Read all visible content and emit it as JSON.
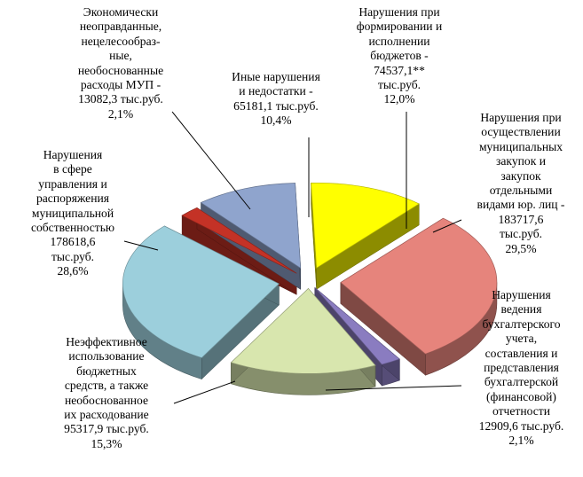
{
  "chart_data": {
    "type": "pie",
    "style": "3d-exploded",
    "legend": "none",
    "slices": [
      {
        "key": "budget",
        "label": "Нарушения при\nформировании и\nисполнении\nбюджетов -\n74537,1**\nтыс.руб.\n12,0%",
        "value": 74537.1,
        "unit": "тыс.руб.",
        "percent": 12.0,
        "color": "#ffff00"
      },
      {
        "key": "procurement",
        "label": "Нарушения при\nосуществлении\nмуниципальных\nзакупок и\nзакупок\nотдельными\nвидами юр. лиц -\n183717,6\nтыс.руб.\n29,5%",
        "value": 183717.6,
        "unit": "тыс.руб.",
        "percent": 29.5,
        "color": "#e6847c"
      },
      {
        "key": "accounting",
        "label": "Нарушения\nведения\nбухгалтерского\nучета,\nсоставления и\nпредставления\nбухгалтерской\n(финансовой)\nотчетности\n12909,6 тыс.руб.\n2,1%",
        "value": 12909.6,
        "unit": "тыс.руб.",
        "percent": 2.1,
        "color": "#8a7cc0"
      },
      {
        "key": "inefficient",
        "label": "Неэффективное\nиспользование\nбюджетных\nсредств, а также\nнеобоснованное\nих расходование\n95317,9 тыс.руб.\n15,3%",
        "value": 95317.9,
        "unit": "тыс.руб.",
        "percent": 15.3,
        "color": "#d8e6ae"
      },
      {
        "key": "property",
        "label": "Нарушения\nв сфере\nуправления и\nраспоряжения\nмуниципальной\nсобственностью\n178618,6\nтыс.руб.\n28,6%",
        "value": 178618.6,
        "unit": "тыс.руб.",
        "percent": 28.6,
        "color": "#9ccfdc"
      },
      {
        "key": "mup",
        "label": "Экономически\nнеоправданные,\nнецелесообраз-\nные,\nнеобоснованные\nрасходы МУП -\n13082,3 тыс.руб.\n2,1%",
        "value": 13082.3,
        "unit": "тыс.руб.",
        "percent": 2.1,
        "color": "#c43226"
      },
      {
        "key": "other",
        "label": "Иные нарушения\nи недостатки -\n65181,1 тыс.руб.\n10,4%",
        "value": 65181.1,
        "unit": "тыс.руб.",
        "percent": 10.4,
        "color": "#8fa4cd"
      }
    ]
  }
}
